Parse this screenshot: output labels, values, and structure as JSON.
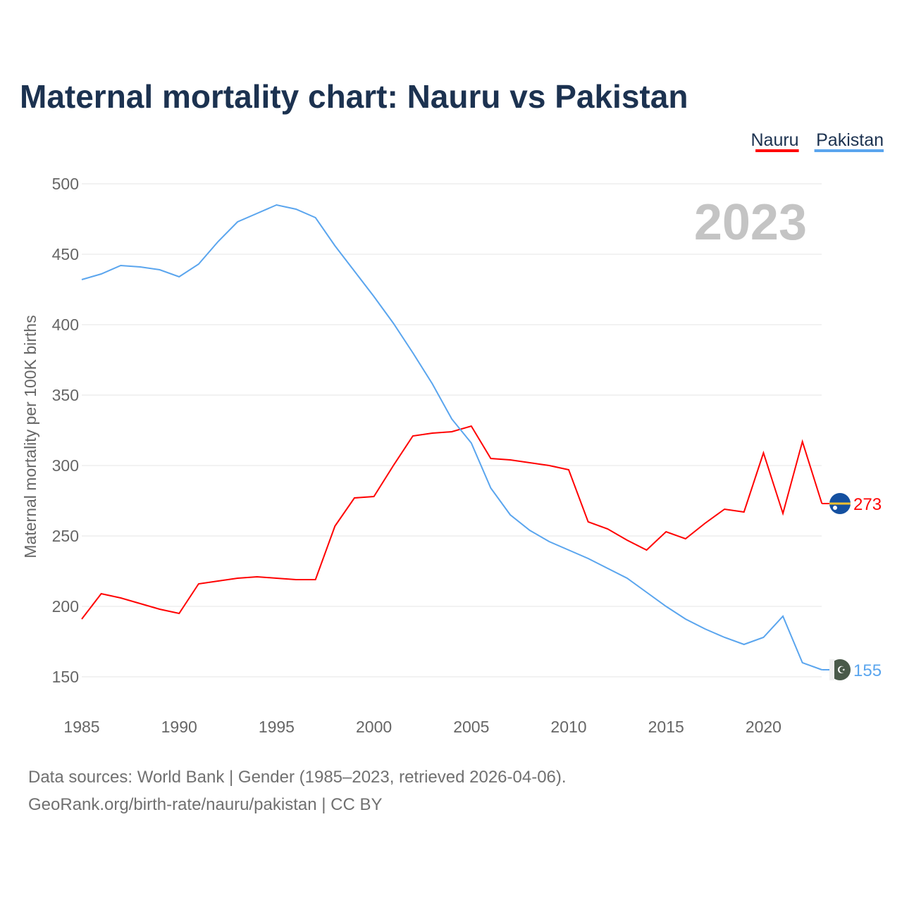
{
  "chart_data": {
    "type": "line",
    "title": "Maternal mortality chart: Nauru vs Pakistan",
    "ylabel": "Maternal mortality per 100K births",
    "xlabel": "",
    "year_label": "2023",
    "ylim": [
      150,
      500
    ],
    "xlim": [
      1985,
      2023
    ],
    "yticks": [
      150,
      200,
      250,
      300,
      350,
      400,
      450,
      500
    ],
    "xticks": [
      1985,
      1990,
      1995,
      2000,
      2005,
      2010,
      2015,
      2020
    ],
    "grid": true,
    "legend_position": "top-right",
    "x": [
      1985,
      1986,
      1987,
      1988,
      1989,
      1990,
      1991,
      1992,
      1993,
      1994,
      1995,
      1996,
      1997,
      1998,
      1999,
      2000,
      2001,
      2002,
      2003,
      2004,
      2005,
      2006,
      2007,
      2008,
      2009,
      2010,
      2011,
      2012,
      2013,
      2014,
      2015,
      2016,
      2017,
      2018,
      2019,
      2020,
      2021,
      2022,
      2023
    ],
    "series": [
      {
        "name": "Nauru",
        "color": "#ff0000",
        "end_label": "273",
        "values": [
          191,
          209,
          206,
          202,
          198,
          195,
          216,
          218,
          220,
          221,
          220,
          219,
          219,
          257,
          277,
          278,
          300,
          321,
          323,
          324,
          328,
          305,
          304,
          302,
          300,
          297,
          260,
          255,
          247,
          240,
          253,
          248,
          259,
          269,
          267,
          309,
          266,
          317,
          273
        ]
      },
      {
        "name": "Pakistan",
        "color": "#5aa5ee",
        "end_label": "155",
        "values": [
          432,
          436,
          442,
          441,
          439,
          434,
          443,
          459,
          473,
          479,
          485,
          482,
          476,
          456,
          438,
          420,
          401,
          380,
          358,
          333,
          316,
          284,
          265,
          254,
          246,
          240,
          234,
          227,
          220,
          210,
          200,
          191,
          184,
          178,
          173,
          178,
          193,
          160,
          155
        ]
      }
    ],
    "footer": {
      "line1": "Data sources: World Bank | Gender (1985–2023, retrieved 2026-04-06).",
      "line2": "GeoRank.org/birth-rate/nauru/pakistan | CC BY"
    }
  }
}
